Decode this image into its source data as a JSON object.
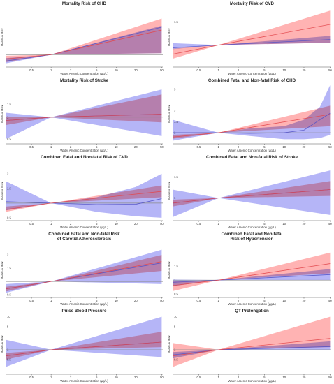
{
  "figure": {
    "xlabel": "Water Arsenic Concentration (µg/L)",
    "ylabel": "Relative Risk",
    "x_ticks": [
      "0.5",
      "1",
      "2",
      "5",
      "10",
      "20",
      "50"
    ],
    "colors": {
      "red_fill": "#ff9a9a",
      "red_line": "#e2474d",
      "blue_fill": "#a3a3f5",
      "blue_line": "#5252c6",
      "reference_line": "#8a8a8a"
    }
  },
  "chart_data": [
    {
      "type": "line",
      "title": [
        "Mortality Risk of CHD"
      ],
      "y_ticks": [],
      "ylim": [
        0.62,
        2.6
      ],
      "series": [
        {
          "color": "red",
          "x": [
            0.2,
            1,
            50
          ],
          "y": [
            0.85,
            1.0,
            1.85
          ],
          "lower": [
            0.74,
            1.0,
            1.05
          ],
          "upper": [
            0.96,
            1.0,
            2.25
          ]
        },
        {
          "color": "blue",
          "x": [
            0.2,
            1,
            50
          ],
          "y": [
            0.78,
            1.0,
            1.95
          ],
          "lower": [
            0.7,
            1.0,
            1.05
          ],
          "upper": [
            0.88,
            1.0,
            2.0
          ]
        }
      ]
    },
    {
      "type": "line",
      "title": [
        "Mortality Risk of CVD"
      ],
      "y_ticks": [
        "1.5"
      ],
      "ylim": [
        0.55,
        1.8
      ],
      "series": [
        {
          "color": "red",
          "x": [
            0.2,
            1,
            50
          ],
          "y": [
            0.8,
            1.0,
            1.45
          ],
          "lower": [
            0.7,
            1.0,
            1.05
          ],
          "upper": [
            0.92,
            1.0,
            1.75
          ]
        },
        {
          "color": "blue",
          "x": [
            0.2,
            1,
            50
          ],
          "y": [
            0.94,
            1.0,
            1.12
          ],
          "lower": [
            0.91,
            1.0,
            1.05
          ],
          "upper": [
            1.04,
            1.0,
            1.2
          ]
        }
      ]
    },
    {
      "type": "line",
      "title": [
        "Mortality Risk of Stroke"
      ],
      "y_ticks": [
        "1.5",
        "1",
        "0.5"
      ],
      "ylim": [
        0.45,
        2.75
      ],
      "series": [
        {
          "color": "red",
          "x": [
            0.2,
            1,
            50
          ],
          "y": [
            0.9,
            1.0,
            1.1
          ],
          "lower": [
            0.78,
            1.0,
            0.85
          ],
          "upper": [
            1.02,
            1.0,
            2.05
          ]
        },
        {
          "color": "blue",
          "x": [
            0.2,
            1,
            50
          ],
          "y": [
            0.9,
            1.0,
            1.1
          ],
          "lower": [
            0.5,
            1.0,
            0.55
          ],
          "upper": [
            1.15,
            1.0,
            2.4
          ]
        }
      ]
    },
    {
      "type": "line",
      "title": [
        "Combined Fatal and Non-fatal Risk of CHD"
      ],
      "y_ticks": [
        "3",
        "2",
        "1.5",
        "1"
      ],
      "ylim": [
        0.55,
        3.2
      ],
      "series": [
        {
          "color": "red",
          "x": [
            0.2,
            1,
            50
          ],
          "y": [
            0.8,
            1.0,
            1.85
          ],
          "lower": [
            0.72,
            1.0,
            1.3
          ],
          "upper": [
            0.9,
            1.0,
            2.25
          ]
        },
        {
          "color": "blue",
          "x": [
            0.2,
            1,
            3,
            10,
            20,
            35,
            50
          ],
          "y": [
            1.0,
            1.0,
            0.97,
            1.0,
            1.12,
            1.6,
            1.9
          ],
          "lower": [
            0.63,
            1.0,
            0.85,
            0.7,
            0.7,
            0.75,
            0.9
          ],
          "upper": [
            1.6,
            1.0,
            1.2,
            1.3,
            1.6,
            2.2,
            3.2
          ]
        }
      ]
    },
    {
      "type": "line",
      "title": [
        "Combined Fatal and Non-fatal Risk of CVD"
      ],
      "y_ticks": [
        "2",
        "1.5",
        "0.5"
      ],
      "ylim": [
        0.45,
        2.4
      ],
      "series": [
        {
          "color": "red",
          "x": [
            0.2,
            1,
            50
          ],
          "y": [
            0.78,
            1.0,
            1.4
          ],
          "lower": [
            0.7,
            1.0,
            1.2
          ],
          "upper": [
            0.88,
            1.0,
            1.6
          ]
        },
        {
          "color": "blue",
          "x": [
            0.2,
            1,
            5,
            20,
            50
          ],
          "y": [
            1.05,
            1.0,
            0.95,
            0.96,
            1.15
          ],
          "lower": [
            0.75,
            1.0,
            0.7,
            0.55,
            0.5
          ],
          "upper": [
            1.75,
            1.0,
            1.2,
            1.55,
            2.0
          ]
        }
      ]
    },
    {
      "type": "line",
      "title": [
        "Combined Fatal and Non-fatal Risk of Stroke"
      ],
      "y_ticks": [
        "1.5",
        "1"
      ],
      "ylim": [
        0.5,
        1.85
      ],
      "series": [
        {
          "color": "red",
          "x": [
            0.2,
            1,
            50
          ],
          "y": [
            0.88,
            1.0,
            1.2
          ],
          "lower": [
            0.8,
            1.0,
            1.05
          ],
          "upper": [
            0.96,
            1.0,
            1.4
          ]
        },
        {
          "color": "blue",
          "x": [
            0.2,
            1,
            50
          ],
          "y": [
            0.88,
            1.0,
            1.2
          ],
          "lower": [
            0.55,
            1.0,
            0.6
          ],
          "upper": [
            1.2,
            1.0,
            1.65
          ]
        }
      ]
    },
    {
      "type": "line",
      "title": [
        "Combined Fatal and Non-fatal Risk",
        "of Carotid Atherosclerosis"
      ],
      "y_ticks": [
        "2",
        "1.5",
        "0.5"
      ],
      "ylim": [
        0.45,
        2.4
      ],
      "series": [
        {
          "color": "red",
          "x": [
            0.2,
            1,
            50
          ],
          "y": [
            0.72,
            1.0,
            1.75
          ],
          "lower": [
            0.62,
            1.0,
            1.4
          ],
          "upper": [
            0.8,
            1.0,
            2.0
          ]
        },
        {
          "color": "blue",
          "x": [
            0.2,
            1,
            50
          ],
          "y": [
            0.72,
            1.0,
            1.7
          ],
          "lower": [
            0.57,
            1.0,
            0.9
          ],
          "upper": [
            0.9,
            1.0,
            2.2
          ]
        }
      ]
    },
    {
      "type": "line",
      "title": [
        "Combined Fatal and Non-fatal",
        "Risk of Hypertension"
      ],
      "y_ticks": [
        "1.5",
        "1",
        "0.5"
      ],
      "ylim": [
        0.42,
        2.3
      ],
      "series": [
        {
          "color": "red",
          "x": [
            0.2,
            1,
            50
          ],
          "y": [
            0.8,
            1.0,
            1.6
          ],
          "lower": [
            0.6,
            1.0,
            1.25
          ],
          "upper": [
            0.95,
            1.0,
            2.0
          ]
        },
        {
          "color": "blue",
          "x": [
            0.2,
            1,
            50
          ],
          "y": [
            0.92,
            1.0,
            1.2
          ],
          "lower": [
            0.78,
            1.0,
            1.0
          ],
          "upper": [
            1.02,
            1.0,
            1.4
          ]
        }
      ]
    },
    {
      "type": "line",
      "title": [
        "Pulse Blood Pressure"
      ],
      "y_ticks": [
        "10",
        "5",
        "1",
        "0.5"
      ],
      "ylim": [
        0.2,
        10.8
      ],
      "series": [
        {
          "color": "red",
          "x": [
            0.2,
            1,
            50
          ],
          "y": [
            0.65,
            1.0,
            1.7
          ],
          "lower": [
            0.5,
            1.0,
            1.2
          ],
          "upper": [
            0.8,
            1.0,
            3.5
          ]
        },
        {
          "color": "blue",
          "x": [
            0.2,
            1,
            50
          ],
          "y": [
            0.65,
            1.0,
            1.7
          ],
          "lower": [
            0.3,
            1.0,
            0.6
          ],
          "upper": [
            2.0,
            1.0,
            10.0
          ]
        }
      ]
    },
    {
      "type": "line",
      "title": [
        "QT Prolongation"
      ],
      "y_ticks": [
        "10",
        "5",
        "1",
        "0.5"
      ],
      "ylim": [
        0.2,
        10.8
      ],
      "series": [
        {
          "color": "red",
          "x": [
            0.2,
            1,
            50
          ],
          "y": [
            0.65,
            1.0,
            2.2
          ],
          "lower": [
            0.3,
            1.0,
            1.2
          ],
          "upper": [
            1.6,
            1.0,
            10.0
          ]
        },
        {
          "color": "blue",
          "x": [
            0.2,
            1,
            50
          ],
          "y": [
            0.7,
            1.0,
            1.25
          ],
          "lower": [
            0.55,
            1.0,
            0.95
          ],
          "upper": [
            0.85,
            1.0,
            1.8
          ]
        }
      ]
    }
  ]
}
